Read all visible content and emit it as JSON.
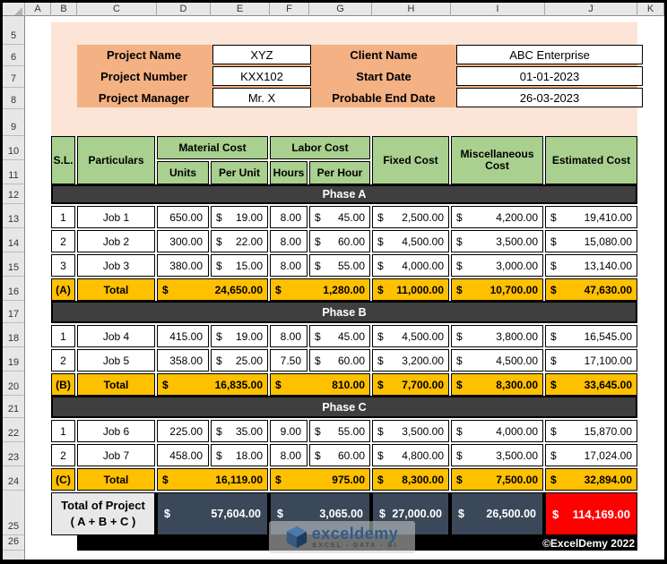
{
  "excel": {
    "column_headers": [
      "A",
      "B",
      "C",
      "D",
      "E",
      "F",
      "G",
      "H",
      "I",
      "J",
      "K"
    ],
    "row_headers": [
      "5",
      "6",
      "7",
      "8",
      "9",
      "10",
      "11",
      "12",
      "13",
      "14",
      "15",
      "16",
      "17",
      "18",
      "19",
      "20",
      "21",
      "22",
      "23",
      "24",
      "25",
      "26"
    ]
  },
  "project_info": {
    "left": [
      {
        "label": "Project Name",
        "value": "XYZ"
      },
      {
        "label": "Project Number",
        "value": "KXX102"
      },
      {
        "label": "Project Manager",
        "value": "Mr. X"
      }
    ],
    "right": [
      {
        "label": "Client Name",
        "value": "ABC Enterprise"
      },
      {
        "label": "Start Date",
        "value": "01-01-2023"
      },
      {
        "label": "Probable End Date",
        "value": "26-03-2023"
      }
    ]
  },
  "table": {
    "currency": "$",
    "headers": {
      "sl": "S.L.",
      "particulars": "Particulars",
      "material": "Material Cost",
      "labor": "Labor Cost",
      "units": "Units",
      "per_unit": "Per Unit",
      "hours": "Hours",
      "per_hour": "Per Hour",
      "fixed": "Fixed Cost",
      "miscellaneous": "Miscellaneous Cost",
      "estimated": "Estimated Cost"
    },
    "phases": [
      {
        "name": "Phase A",
        "rows": [
          {
            "sl": "1",
            "particulars": "Job 1",
            "units": "650.00",
            "per_unit": "19.00",
            "hours": "8.00",
            "per_hour": "45.00",
            "fixed": "2,500.00",
            "miscellaneous": "4,200.00",
            "estimated": "19,410.00"
          },
          {
            "sl": "2",
            "particulars": "Job 2",
            "units": "300.00",
            "per_unit": "22.00",
            "hours": "8.00",
            "per_hour": "60.00",
            "fixed": "4,500.00",
            "miscellaneous": "3,500.00",
            "estimated": "15,080.00"
          },
          {
            "sl": "3",
            "particulars": "Job 3",
            "units": "380.00",
            "per_unit": "15.00",
            "hours": "8.00",
            "per_hour": "55.00",
            "fixed": "4,000.00",
            "miscellaneous": "3,000.00",
            "estimated": "13,140.00"
          }
        ],
        "total": {
          "sl": "(A)",
          "label": "Total",
          "material": "24,650.00",
          "labor": "1,280.00",
          "fixed": "11,000.00",
          "miscellaneous": "10,700.00",
          "estimated": "47,630.00"
        }
      },
      {
        "name": "Phase B",
        "rows": [
          {
            "sl": "1",
            "particulars": "Job 4",
            "units": "415.00",
            "per_unit": "19.00",
            "hours": "8.00",
            "per_hour": "45.00",
            "fixed": "4,500.00",
            "miscellaneous": "3,800.00",
            "estimated": "16,545.00"
          },
          {
            "sl": "2",
            "particulars": "Job 5",
            "units": "358.00",
            "per_unit": "25.00",
            "hours": "7.50",
            "per_hour": "60.00",
            "fixed": "3,200.00",
            "miscellaneous": "4,500.00",
            "estimated": "17,100.00"
          }
        ],
        "total": {
          "sl": "(B)",
          "label": "Total",
          "material": "16,835.00",
          "labor": "810.00",
          "fixed": "7,700.00",
          "miscellaneous": "8,300.00",
          "estimated": "33,645.00"
        }
      },
      {
        "name": "Phase C",
        "rows": [
          {
            "sl": "1",
            "particulars": "Job 6",
            "units": "225.00",
            "per_unit": "35.00",
            "hours": "9.00",
            "per_hour": "55.00",
            "fixed": "3,500.00",
            "miscellaneous": "4,000.00",
            "estimated": "15,870.00"
          },
          {
            "sl": "2",
            "particulars": "Job 7",
            "units": "458.00",
            "per_unit": "18.00",
            "hours": "8.00",
            "per_hour": "60.00",
            "fixed": "4,800.00",
            "miscellaneous": "3,500.00",
            "estimated": "17,024.00"
          }
        ],
        "total": {
          "sl": "(C)",
          "label": "Total",
          "material": "16,119.00",
          "labor": "975.00",
          "fixed": "8,300.00",
          "miscellaneous": "7,500.00",
          "estimated": "32,894.00"
        }
      }
    ],
    "grand_total": {
      "label_line1": "Total of Project",
      "label_line2": "( A + B + C )",
      "material": "57,604.00",
      "labor": "3,065.00",
      "fixed": "27,000.00",
      "miscellaneous": "26,500.00",
      "estimated": "114,169.00"
    }
  },
  "watermark": {
    "brand": "exceldemy",
    "tagline": "EXCEL - DATA - BI"
  },
  "footer": {
    "copyright": "©ExcelDemy 2022"
  },
  "colors": {
    "peach_light": "#FCE4D6",
    "info_orange": "#F4B183",
    "table_header_green": "#A9D08E",
    "phase_band_gray": "#3F3F3F",
    "total_row_gold": "#FFC000",
    "grand_row_slate": "#3B4859",
    "estimated_total_red": "#FF0000"
  }
}
